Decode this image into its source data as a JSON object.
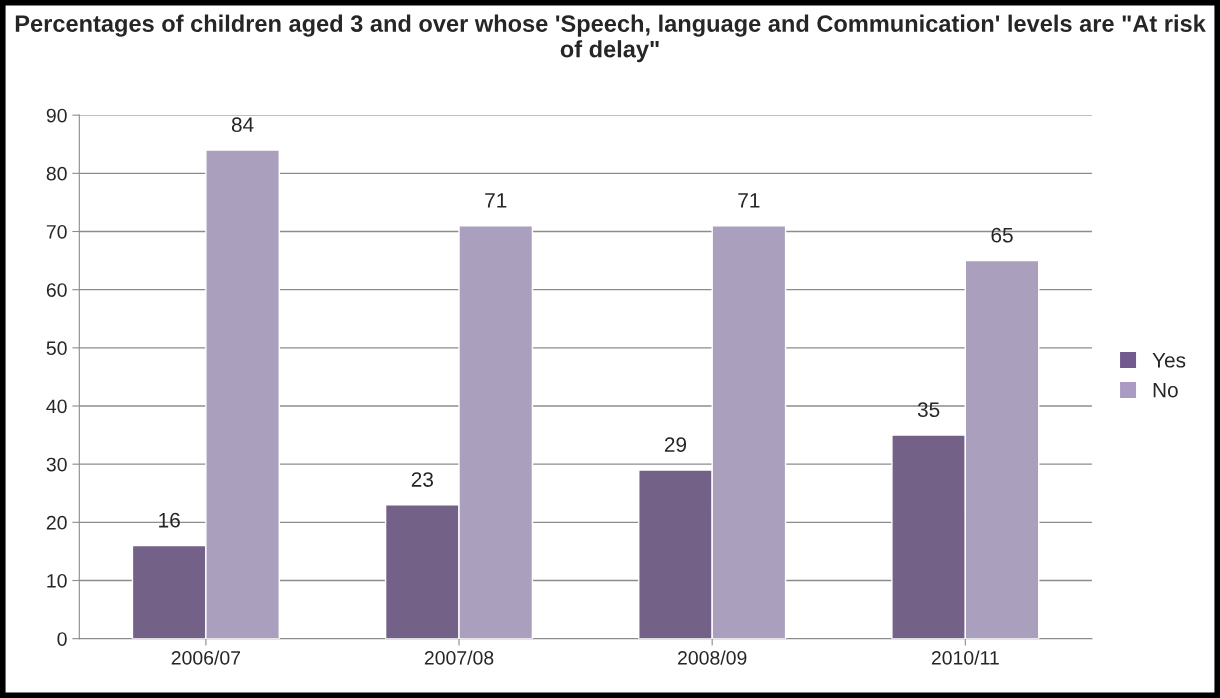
{
  "chart_data": {
    "type": "bar",
    "title": "Percentages of children aged 3 and over whose 'Speech, language and Communication' levels are \"At risk of delay\"",
    "categories": [
      "2006/07",
      "2007/08",
      "2008/09",
      "2010/11"
    ],
    "series": [
      {
        "name": "Yes",
        "color": "#725a8f",
        "values": [
          16,
          23,
          29,
          35
        ]
      },
      {
        "name": "No",
        "color": "#a99bc2",
        "values": [
          84,
          71,
          71,
          65
        ]
      }
    ],
    "ylim": [
      0,
      90
    ],
    "yticks": [
      0,
      10,
      20,
      30,
      40,
      50,
      60,
      70,
      80,
      90
    ],
    "grid": "y",
    "legend": "right",
    "data_labels": true
  }
}
